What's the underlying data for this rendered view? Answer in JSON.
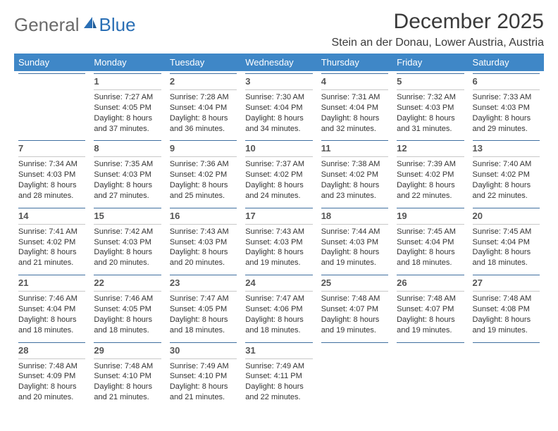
{
  "logo": {
    "general": "General",
    "blue": "Blue"
  },
  "title": "December 2025",
  "location": "Stein an der Donau, Lower Austria, Austria",
  "colors": {
    "header_bg": "#3f87c7",
    "header_text": "#ffffff",
    "daynum_border_top": "#3f6fa0",
    "daynum_border_bottom": "#c8c8c8",
    "logo_gray": "#6a6a6a",
    "logo_blue": "#2a6fb5",
    "text": "#333333",
    "title_color": "#3a3a3a"
  },
  "weekdays": [
    "Sunday",
    "Monday",
    "Tuesday",
    "Wednesday",
    "Thursday",
    "Friday",
    "Saturday"
  ],
  "weeks": [
    [
      null,
      {
        "n": "1",
        "sr": "7:27 AM",
        "ss": "4:05 PM",
        "dl": "8 hours and 37 minutes."
      },
      {
        "n": "2",
        "sr": "7:28 AM",
        "ss": "4:04 PM",
        "dl": "8 hours and 36 minutes."
      },
      {
        "n": "3",
        "sr": "7:30 AM",
        "ss": "4:04 PM",
        "dl": "8 hours and 34 minutes."
      },
      {
        "n": "4",
        "sr": "7:31 AM",
        "ss": "4:04 PM",
        "dl": "8 hours and 32 minutes."
      },
      {
        "n": "5",
        "sr": "7:32 AM",
        "ss": "4:03 PM",
        "dl": "8 hours and 31 minutes."
      },
      {
        "n": "6",
        "sr": "7:33 AM",
        "ss": "4:03 PM",
        "dl": "8 hours and 29 minutes."
      }
    ],
    [
      {
        "n": "7",
        "sr": "7:34 AM",
        "ss": "4:03 PM",
        "dl": "8 hours and 28 minutes."
      },
      {
        "n": "8",
        "sr": "7:35 AM",
        "ss": "4:03 PM",
        "dl": "8 hours and 27 minutes."
      },
      {
        "n": "9",
        "sr": "7:36 AM",
        "ss": "4:02 PM",
        "dl": "8 hours and 25 minutes."
      },
      {
        "n": "10",
        "sr": "7:37 AM",
        "ss": "4:02 PM",
        "dl": "8 hours and 24 minutes."
      },
      {
        "n": "11",
        "sr": "7:38 AM",
        "ss": "4:02 PM",
        "dl": "8 hours and 23 minutes."
      },
      {
        "n": "12",
        "sr": "7:39 AM",
        "ss": "4:02 PM",
        "dl": "8 hours and 22 minutes."
      },
      {
        "n": "13",
        "sr": "7:40 AM",
        "ss": "4:02 PM",
        "dl": "8 hours and 22 minutes."
      }
    ],
    [
      {
        "n": "14",
        "sr": "7:41 AM",
        "ss": "4:02 PM",
        "dl": "8 hours and 21 minutes."
      },
      {
        "n": "15",
        "sr": "7:42 AM",
        "ss": "4:03 PM",
        "dl": "8 hours and 20 minutes."
      },
      {
        "n": "16",
        "sr": "7:43 AM",
        "ss": "4:03 PM",
        "dl": "8 hours and 20 minutes."
      },
      {
        "n": "17",
        "sr": "7:43 AM",
        "ss": "4:03 PM",
        "dl": "8 hours and 19 minutes."
      },
      {
        "n": "18",
        "sr": "7:44 AM",
        "ss": "4:03 PM",
        "dl": "8 hours and 19 minutes."
      },
      {
        "n": "19",
        "sr": "7:45 AM",
        "ss": "4:04 PM",
        "dl": "8 hours and 18 minutes."
      },
      {
        "n": "20",
        "sr": "7:45 AM",
        "ss": "4:04 PM",
        "dl": "8 hours and 18 minutes."
      }
    ],
    [
      {
        "n": "21",
        "sr": "7:46 AM",
        "ss": "4:04 PM",
        "dl": "8 hours and 18 minutes."
      },
      {
        "n": "22",
        "sr": "7:46 AM",
        "ss": "4:05 PM",
        "dl": "8 hours and 18 minutes."
      },
      {
        "n": "23",
        "sr": "7:47 AM",
        "ss": "4:05 PM",
        "dl": "8 hours and 18 minutes."
      },
      {
        "n": "24",
        "sr": "7:47 AM",
        "ss": "4:06 PM",
        "dl": "8 hours and 18 minutes."
      },
      {
        "n": "25",
        "sr": "7:48 AM",
        "ss": "4:07 PM",
        "dl": "8 hours and 19 minutes."
      },
      {
        "n": "26",
        "sr": "7:48 AM",
        "ss": "4:07 PM",
        "dl": "8 hours and 19 minutes."
      },
      {
        "n": "27",
        "sr": "7:48 AM",
        "ss": "4:08 PM",
        "dl": "8 hours and 19 minutes."
      }
    ],
    [
      {
        "n": "28",
        "sr": "7:48 AM",
        "ss": "4:09 PM",
        "dl": "8 hours and 20 minutes."
      },
      {
        "n": "29",
        "sr": "7:48 AM",
        "ss": "4:10 PM",
        "dl": "8 hours and 21 minutes."
      },
      {
        "n": "30",
        "sr": "7:49 AM",
        "ss": "4:10 PM",
        "dl": "8 hours and 21 minutes."
      },
      {
        "n": "31",
        "sr": "7:49 AM",
        "ss": "4:11 PM",
        "dl": "8 hours and 22 minutes."
      },
      null,
      null,
      null
    ]
  ],
  "labels": {
    "sunrise": "Sunrise: ",
    "sunset": "Sunset: ",
    "daylight": "Daylight: "
  }
}
